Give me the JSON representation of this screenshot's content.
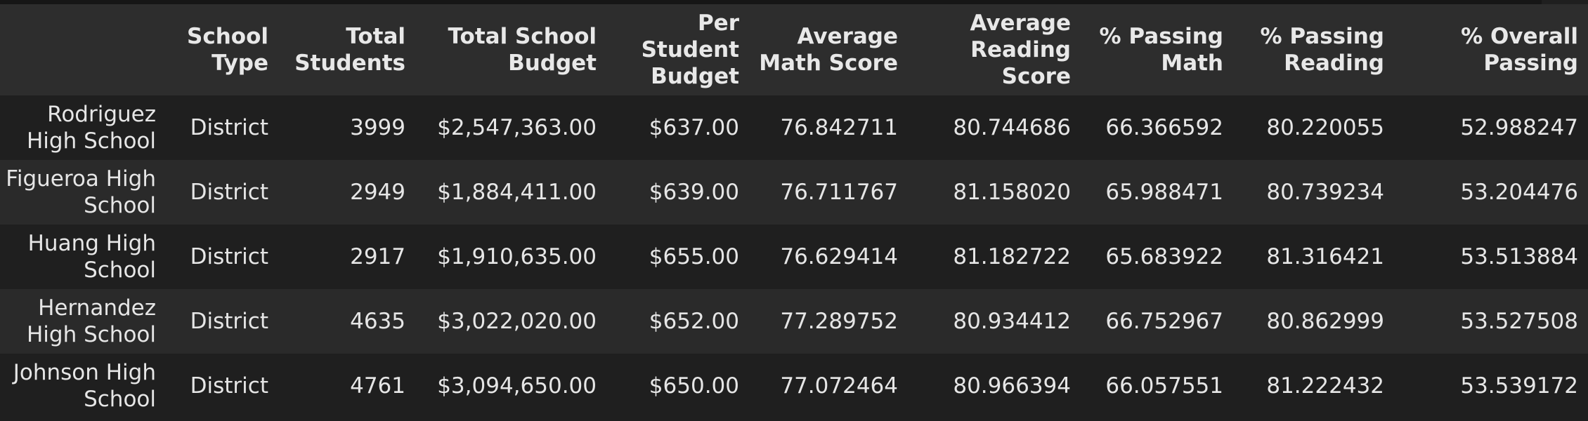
{
  "columns": [
    {
      "key": "index",
      "label": ""
    },
    {
      "key": "school_type",
      "label": "School Type"
    },
    {
      "key": "total_students",
      "label": "Total Students"
    },
    {
      "key": "total_school_budget",
      "label": "Total School Budget"
    },
    {
      "key": "per_student_budget",
      "label": "Per Student Budget"
    },
    {
      "key": "avg_math",
      "label": "Average Math Score"
    },
    {
      "key": "avg_reading",
      "label": "Average Reading Score"
    },
    {
      "key": "pct_math",
      "label": "% Passing Math"
    },
    {
      "key": "pct_reading",
      "label": "% Passing Reading"
    },
    {
      "key": "pct_overall",
      "label": "% Overall Passing"
    }
  ],
  "rows": [
    {
      "index": "Rodriguez High School",
      "school_type": "District",
      "total_students": "3999",
      "total_school_budget": "$2,547,363.00",
      "per_student_budget": "$637.00",
      "avg_math": "76.842711",
      "avg_reading": "80.744686",
      "pct_math": "66.366592",
      "pct_reading": "80.220055",
      "pct_overall": "52.988247"
    },
    {
      "index": "Figueroa High School",
      "school_type": "District",
      "total_students": "2949",
      "total_school_budget": "$1,884,411.00",
      "per_student_budget": "$639.00",
      "avg_math": "76.711767",
      "avg_reading": "81.158020",
      "pct_math": "65.988471",
      "pct_reading": "80.739234",
      "pct_overall": "53.204476"
    },
    {
      "index": "Huang High School",
      "school_type": "District",
      "total_students": "2917",
      "total_school_budget": "$1,910,635.00",
      "per_student_budget": "$655.00",
      "avg_math": "76.629414",
      "avg_reading": "81.182722",
      "pct_math": "65.683922",
      "pct_reading": "81.316421",
      "pct_overall": "53.513884"
    },
    {
      "index": "Hernandez High School",
      "school_type": "District",
      "total_students": "4635",
      "total_school_budget": "$3,022,020.00",
      "per_student_budget": "$652.00",
      "avg_math": "77.289752",
      "avg_reading": "80.934412",
      "pct_math": "66.752967",
      "pct_reading": "80.862999",
      "pct_overall": "53.527508"
    },
    {
      "index": "Johnson High School",
      "school_type": "District",
      "total_students": "4761",
      "total_school_budget": "$3,094,650.00",
      "per_student_budget": "$650.00",
      "avg_math": "77.072464",
      "avg_reading": "80.966394",
      "pct_math": "66.057551",
      "pct_reading": "81.222432",
      "pct_overall": "53.539172"
    }
  ]
}
